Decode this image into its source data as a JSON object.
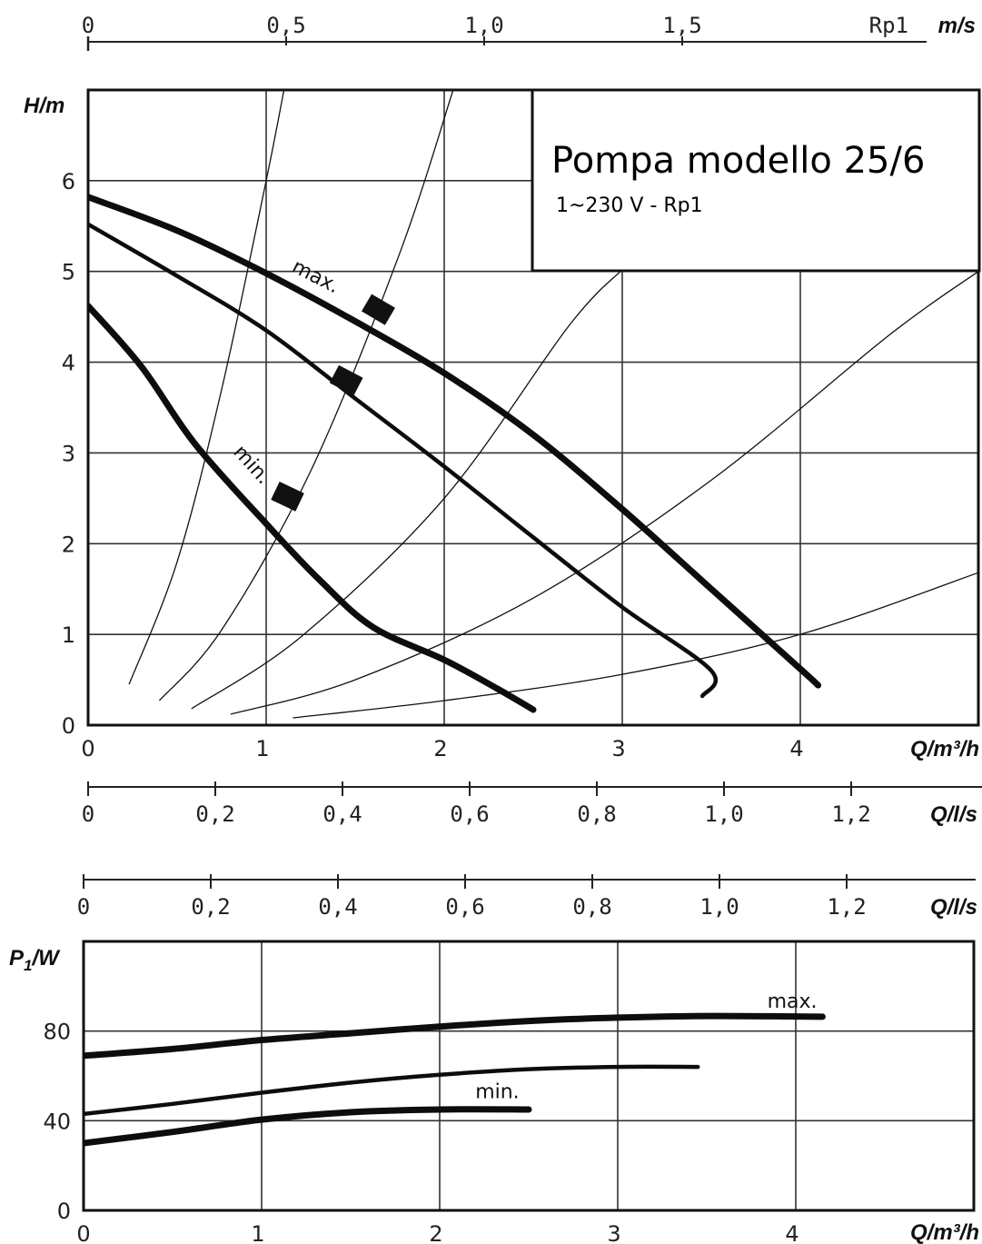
{
  "title": "Pompa modello 25/6",
  "subtitle": "1~230 V - Rp1",
  "top_axis": {
    "unit": "m/s",
    "label": "Rp1",
    "ticks": [
      [
        "0",
        0
      ],
      [
        "0,5",
        0.5
      ],
      [
        "1,0",
        1.0
      ],
      [
        "1,5",
        1.5
      ]
    ]
  },
  "chart_data": [
    {
      "type": "line",
      "name": "head",
      "ylabel": "H/m",
      "xlabel": "Q/m³/h",
      "x2label": "Q/l/s",
      "xlim": [
        0,
        5
      ],
      "ylim": [
        0,
        7
      ],
      "xticks": [
        [
          "0",
          0
        ],
        [
          "1",
          1
        ],
        [
          "2",
          2
        ],
        [
          "3",
          3
        ],
        [
          "4",
          4
        ]
      ],
      "yticks": [
        [
          "0",
          0
        ],
        [
          "1",
          1
        ],
        [
          "2",
          2
        ],
        [
          "3",
          3
        ],
        [
          "4",
          4
        ],
        [
          "5",
          5
        ],
        [
          "6",
          6
        ]
      ],
      "x2ticks": [
        [
          "0",
          0
        ],
        [
          "0,2",
          0.2
        ],
        [
          "0,4",
          0.4
        ],
        [
          "0,6",
          0.6
        ],
        [
          "0,8",
          0.8
        ],
        [
          "1,0",
          1.0
        ],
        [
          "1,2",
          1.2
        ]
      ],
      "grid": true,
      "series": [
        {
          "name": "max.",
          "width": 7,
          "points": [
            [
              0,
              5.82
            ],
            [
              0.5,
              5.45
            ],
            [
              1,
              4.98
            ],
            [
              1.5,
              4.45
            ],
            [
              2,
              3.88
            ],
            [
              2.5,
              3.2
            ],
            [
              3,
              2.38
            ],
            [
              3.5,
              1.5
            ],
            [
              4,
              0.62
            ],
            [
              4.1,
              0.44
            ]
          ]
        },
        {
          "name": "",
          "width": 4.5,
          "points": [
            [
              0,
              5.52
            ],
            [
              0.5,
              4.95
            ],
            [
              1,
              4.35
            ],
            [
              1.5,
              3.6
            ],
            [
              2,
              2.85
            ],
            [
              2.5,
              2.07
            ],
            [
              3,
              1.3
            ],
            [
              3.5,
              0.6
            ],
            [
              3.45,
              0.32
            ]
          ]
        },
        {
          "name": "min.",
          "width": 7,
          "points": [
            [
              0,
              4.62
            ],
            [
              0.3,
              3.95
            ],
            [
              0.6,
              3.1
            ],
            [
              1,
              2.22
            ],
            [
              1.3,
              1.6
            ],
            [
              1.6,
              1.08
            ],
            [
              2,
              0.72
            ],
            [
              2.3,
              0.4
            ],
            [
              2.5,
              0.17
            ]
          ]
        }
      ],
      "system_curves": [
        {
          "points": [
            [
              0.23,
              0.45
            ],
            [
              0.5,
              1.8
            ],
            [
              0.75,
              3.7
            ],
            [
              1,
              6.0
            ],
            [
              1.1,
              7.0
            ]
          ]
        },
        {
          "points": [
            [
              0.4,
              0.27
            ],
            [
              0.75,
              1.05
            ],
            [
              1.25,
              2.8
            ],
            [
              1.75,
              5.2
            ],
            [
              2.05,
              7.0
            ]
          ]
        },
        {
          "points": [
            [
              0.58,
              0.18
            ],
            [
              1.2,
              0.98
            ],
            [
              2.0,
              2.5
            ],
            [
              2.7,
              4.4
            ],
            [
              3,
              5.02
            ]
          ]
        },
        {
          "points": [
            [
              0.8,
              0.12
            ],
            [
              1.5,
              0.5
            ],
            [
              2.5,
              1.4
            ],
            [
              3.5,
              2.7
            ],
            [
              4.5,
              4.3
            ],
            [
              5,
              5.0
            ]
          ]
        },
        {
          "points": [
            [
              1.15,
              0.08
            ],
            [
              2,
              0.27
            ],
            [
              3,
              0.56
            ],
            [
              4,
              1.0
            ],
            [
              5,
              1.68
            ]
          ]
        }
      ],
      "annotations": [
        "max.",
        "min."
      ]
    },
    {
      "type": "line",
      "name": "power",
      "ylabel": "P1/W",
      "ylabel_main": "P",
      "ylabel_sub": "1",
      "ylabel_rest": "/W",
      "xlabel": "Q/m³/h",
      "x2label": "Q/l/s",
      "xlim": [
        0,
        5
      ],
      "ylim": [
        0,
        120
      ],
      "xticks": [
        [
          "0",
          0
        ],
        [
          "1",
          1
        ],
        [
          "2",
          2
        ],
        [
          "3",
          3
        ],
        [
          "4",
          4
        ]
      ],
      "yticks": [
        [
          "0",
          0
        ],
        [
          "40",
          40
        ],
        [
          "80",
          80
        ]
      ],
      "x2ticks": [
        [
          "0",
          0
        ],
        [
          "0,2",
          0.2
        ],
        [
          "0,4",
          0.4
        ],
        [
          "0,6",
          0.6
        ],
        [
          "0,8",
          0.8
        ],
        [
          "1,0",
          1.0
        ],
        [
          "1,2",
          1.2
        ]
      ],
      "grid": true,
      "series": [
        {
          "name": "max.",
          "width": 7,
          "points": [
            [
              0,
              69
            ],
            [
              0.5,
              72
            ],
            [
              1,
              76
            ],
            [
              1.5,
              79
            ],
            [
              2,
              82
            ],
            [
              2.5,
              84.5
            ],
            [
              3,
              86
            ],
            [
              3.5,
              86.7
            ],
            [
              4,
              86.5
            ],
            [
              4.15,
              86.4
            ]
          ]
        },
        {
          "name": "",
          "width": 4.5,
          "points": [
            [
              0,
              43
            ],
            [
              0.5,
              47.5
            ],
            [
              1,
              52.5
            ],
            [
              1.5,
              57
            ],
            [
              2,
              60.5
            ],
            [
              2.5,
              63
            ],
            [
              3,
              64
            ],
            [
              3.45,
              64
            ]
          ]
        },
        {
          "name": "min.",
          "width": 7,
          "points": [
            [
              0,
              30
            ],
            [
              0.5,
              35
            ],
            [
              1,
              40.5
            ],
            [
              1.5,
              43.8
            ],
            [
              2,
              45
            ],
            [
              2.5,
              45
            ]
          ]
        }
      ],
      "annotations": [
        "max.",
        "min."
      ]
    }
  ]
}
